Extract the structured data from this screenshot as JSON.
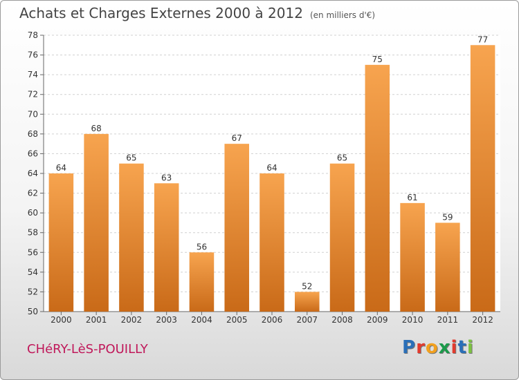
{
  "title": "Achats et Charges Externes 2000 à 2012",
  "subtitle": "(en milliers d'€)",
  "commune": "CHéRY-LèS-POUILLY",
  "logo": {
    "letters": [
      "P",
      "r",
      "o",
      "x",
      "i",
      "t",
      "i"
    ],
    "colors": [
      "#2a6fb8",
      "#e23b2e",
      "#f2a01e",
      "#1b9a4a",
      "#e23b2e",
      "#2a6fb8",
      "#7cc242"
    ]
  },
  "colors": {
    "bar_light": "#f7a44f",
    "bar_dark": "#c96a18",
    "commune": "#c0185a"
  },
  "chart_data": {
    "type": "bar",
    "title": "Achats et Charges Externes 2000 à 2012",
    "subtitle": "(en milliers d'€)",
    "xlabel": "",
    "ylabel": "",
    "categories": [
      "2000",
      "2001",
      "2002",
      "2003",
      "2004",
      "2005",
      "2006",
      "2007",
      "2008",
      "2009",
      "2010",
      "2011",
      "2012"
    ],
    "values": [
      64,
      68,
      65,
      63,
      56,
      67,
      64,
      52,
      65,
      75,
      61,
      59,
      77
    ],
    "ylim": [
      50,
      78
    ],
    "yticks": [
      50,
      52,
      54,
      56,
      58,
      60,
      62,
      64,
      66,
      68,
      70,
      72,
      74,
      76,
      78
    ],
    "grid": true,
    "legend": "none"
  }
}
